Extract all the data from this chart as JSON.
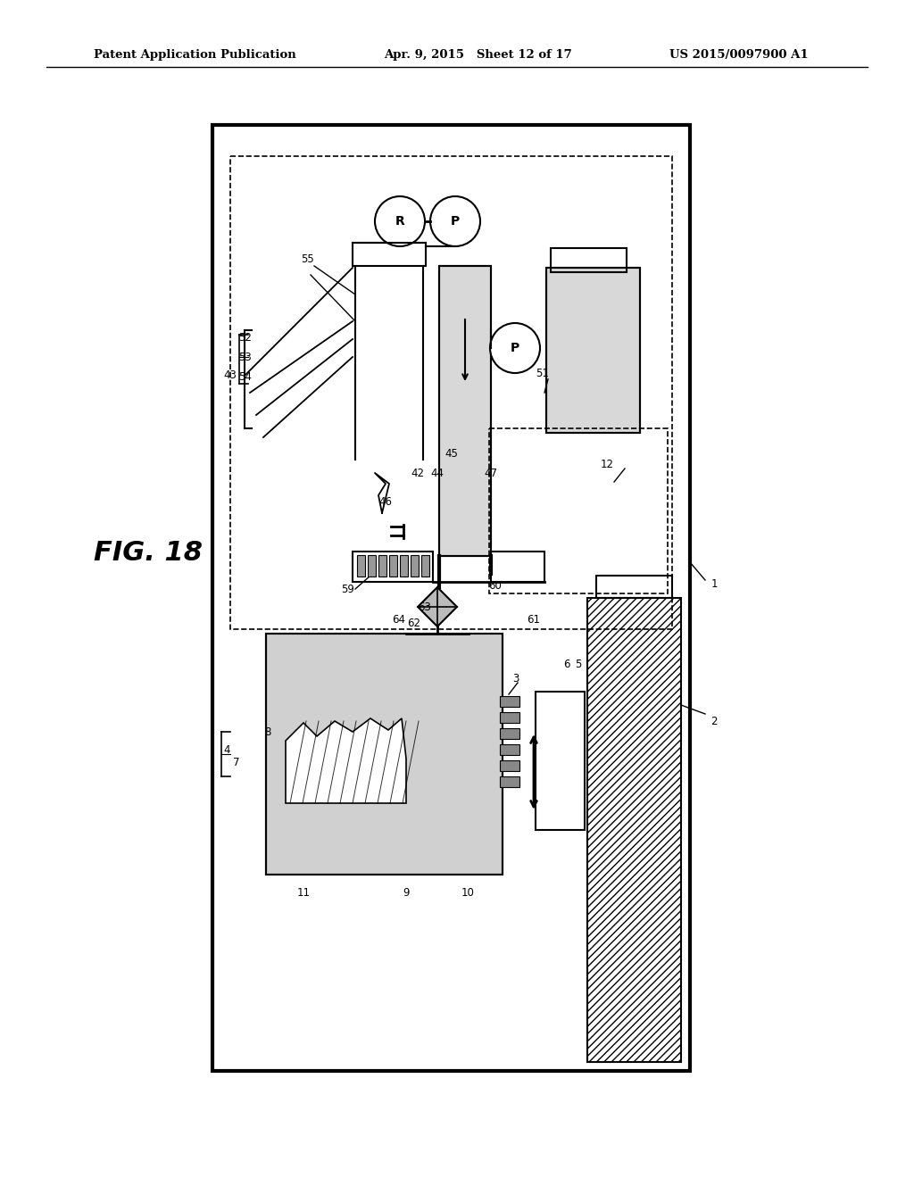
{
  "bg_color": "#ffffff",
  "header_left": "Patent Application Publication",
  "header_mid": "Apr. 9, 2015   Sheet 12 of 17",
  "header_right": "US 2015/0097900 A1",
  "fig_label": "FIG. 18"
}
